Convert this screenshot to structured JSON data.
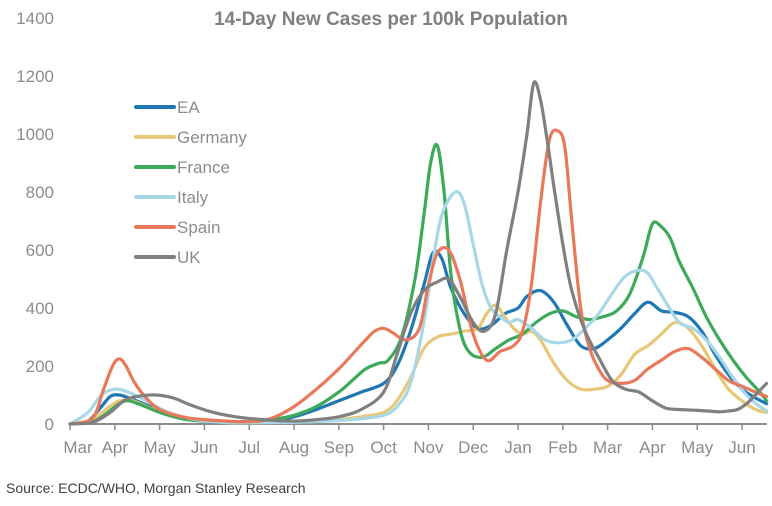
{
  "chart_data": {
    "type": "line",
    "title": "14-Day New Cases per 100k Population",
    "xlabel": "",
    "ylabel": "",
    "ylim": [
      0,
      1400
    ],
    "yticks": [
      0,
      200,
      400,
      600,
      800,
      1000,
      1200,
      1400
    ],
    "ytick_labels": [
      "0",
      "200",
      "400",
      "600",
      "800",
      "1000",
      "1200",
      "1400"
    ],
    "x_unit": "months since start of March 2020",
    "xlim": [
      0,
      15.55
    ],
    "xticks": [
      0,
      1,
      2,
      3,
      4,
      5,
      6,
      7,
      8,
      9,
      10,
      11,
      12,
      13,
      14,
      15
    ],
    "xtick_labels": [
      "Mar",
      "Apr",
      "May",
      "Jun",
      "Jul",
      "Aug",
      "Sep",
      "Oct",
      "Nov",
      "Dec",
      "Jan",
      "Feb",
      "Mar",
      "Apr",
      "May",
      "Jun"
    ],
    "grid": false,
    "legend_position": "top-left",
    "series": [
      {
        "name": "EA",
        "color": "#1f77b4",
        "x": [
          0,
          0.4,
          0.7,
          0.9,
          1.1,
          1.4,
          1.8,
          2.3,
          3,
          4,
          4.5,
          5,
          5.5,
          6,
          6.5,
          7,
          7.3,
          7.6,
          7.9,
          8.1,
          8.3,
          8.5,
          8.8,
          9.1,
          9.4,
          9.7,
          10,
          10.2,
          10.5,
          10.8,
          11.1,
          11.4,
          11.7,
          12,
          12.3,
          12.6,
          12.9,
          13.2,
          13.5,
          13.8,
          14.1,
          14.4,
          14.7,
          15,
          15.3,
          15.55
        ],
        "y": [
          0,
          10,
          60,
          95,
          100,
          85,
          60,
          30,
          12,
          8,
          12,
          25,
          50,
          80,
          110,
          140,
          200,
          320,
          480,
          590,
          570,
          470,
          380,
          330,
          340,
          380,
          400,
          440,
          460,
          420,
          340,
          270,
          260,
          290,
          330,
          380,
          420,
          390,
          385,
          370,
          320,
          240,
          170,
          120,
          90,
          70
        ]
      },
      {
        "name": "Germany",
        "color": "#e8c878",
        "x": [
          0,
          0.5,
          0.8,
          1.1,
          1.4,
          1.8,
          2.3,
          3,
          4,
          5,
          6,
          6.5,
          7,
          7.3,
          7.6,
          7.9,
          8.2,
          8.5,
          8.8,
          9.1,
          9.3,
          9.5,
          9.7,
          9.9,
          10.1,
          10.3,
          10.5,
          10.8,
          11.1,
          11.4,
          11.7,
          12,
          12.3,
          12.6,
          12.9,
          13.2,
          13.5,
          13.8,
          14.1,
          14.4,
          14.7,
          15,
          15.3,
          15.55
        ],
        "y": [
          0,
          15,
          50,
          80,
          80,
          55,
          30,
          12,
          6,
          8,
          15,
          25,
          40,
          80,
          160,
          260,
          300,
          310,
          320,
          330,
          380,
          410,
          370,
          330,
          310,
          320,
          290,
          210,
          150,
          120,
          120,
          130,
          170,
          240,
          270,
          310,
          350,
          330,
          270,
          190,
          120,
          80,
          50,
          40
        ]
      },
      {
        "name": "France",
        "color": "#3daa5a",
        "x": [
          0,
          0.5,
          0.8,
          1.1,
          1.3,
          1.6,
          2,
          2.5,
          3,
          4,
          4.5,
          5,
          5.5,
          6,
          6.3,
          6.6,
          6.9,
          7.1,
          7.4,
          7.7,
          7.9,
          8.05,
          8.2,
          8.35,
          8.5,
          8.7,
          8.9,
          9.2,
          9.5,
          9.8,
          10.1,
          10.4,
          10.7,
          11,
          11.3,
          11.6,
          11.9,
          12.2,
          12.5,
          12.8,
          13.0,
          13.2,
          13.4,
          13.6,
          13.9,
          14.2,
          14.5,
          14.8,
          15.1,
          15.4,
          15.55
        ],
        "y": [
          0,
          8,
          35,
          70,
          80,
          65,
          40,
          18,
          10,
          8,
          15,
          30,
          60,
          110,
          150,
          190,
          210,
          220,
          300,
          500,
          720,
          900,
          960,
          800,
          520,
          330,
          250,
          230,
          260,
          290,
          310,
          350,
          380,
          390,
          370,
          360,
          370,
          390,
          450,
          580,
          690,
          680,
          640,
          560,
          470,
          370,
          290,
          220,
          160,
          110,
          80
        ]
      },
      {
        "name": "Italy",
        "color": "#a8d8e8",
        "x": [
          0,
          0.4,
          0.7,
          1,
          1.3,
          1.7,
          2.2,
          2.8,
          3.5,
          4,
          5,
          6,
          6.5,
          7,
          7.3,
          7.6,
          7.9,
          8.1,
          8.3,
          8.6,
          8.8,
          9.0,
          9.2,
          9.4,
          9.6,
          9.8,
          10,
          10.3,
          10.6,
          10.9,
          11.2,
          11.5,
          11.8,
          12.1,
          12.4,
          12.7,
          12.9,
          13.1,
          13.3,
          13.6,
          13.9,
          14.2,
          14.5,
          14.8,
          15.1,
          15.4,
          15.55
        ],
        "y": [
          0,
          40,
          100,
          120,
          110,
          80,
          40,
          15,
          5,
          4,
          6,
          12,
          18,
          30,
          60,
          140,
          350,
          560,
          720,
          800,
          760,
          620,
          480,
          400,
          370,
          350,
          360,
          330,
          290,
          280,
          290,
          330,
          380,
          450,
          510,
          530,
          520,
          470,
          420,
          350,
          330,
          290,
          230,
          160,
          100,
          60,
          45
        ]
      },
      {
        "name": "Spain",
        "color": "#e8795a",
        "x": [
          0,
          0.5,
          0.75,
          0.95,
          1.1,
          1.25,
          1.45,
          1.7,
          2,
          2.5,
          3,
          4,
          4.5,
          5,
          5.5,
          6,
          6.3,
          6.6,
          6.8,
          7.0,
          7.2,
          7.5,
          7.8,
          8.0,
          8.2,
          8.45,
          8.7,
          9.0,
          9.3,
          9.6,
          9.9,
          10.1,
          10.3,
          10.5,
          10.7,
          10.9,
          11.05,
          11.2,
          11.4,
          11.6,
          11.8,
          12,
          12.3,
          12.6,
          12.9,
          13.2,
          13.5,
          13.8,
          14.1,
          14.4,
          14.7,
          15,
          15.3,
          15.55
        ],
        "y": [
          0,
          20,
          120,
          200,
          225,
          200,
          140,
          90,
          50,
          25,
          15,
          8,
          20,
          60,
          120,
          190,
          240,
          290,
          320,
          330,
          315,
          290,
          330,
          480,
          590,
          600,
          500,
          310,
          220,
          250,
          270,
          320,
          480,
          760,
          980,
          1010,
          950,
          700,
          400,
          260,
          190,
          150,
          140,
          150,
          190,
          220,
          250,
          260,
          230,
          190,
          150,
          130,
          110,
          95
        ]
      },
      {
        "name": "UK",
        "color": "#808080",
        "x": [
          0,
          0.5,
          0.9,
          1.2,
          1.5,
          1.9,
          2.3,
          2.7,
          3.2,
          3.7,
          4.3,
          5,
          5.5,
          6,
          6.5,
          7,
          7.3,
          7.6,
          7.9,
          8.2,
          8.45,
          8.7,
          9,
          9.25,
          9.5,
          9.75,
          10.0,
          10.2,
          10.35,
          10.5,
          10.65,
          10.8,
          11.0,
          11.2,
          11.5,
          11.8,
          12.1,
          12.4,
          12.7,
          13.0,
          13.3,
          13.6,
          13.9,
          14.2,
          14.5,
          14.7,
          14.9,
          15.1,
          15.3,
          15.55
        ],
        "y": [
          0,
          5,
          40,
          80,
          95,
          100,
          90,
          65,
          40,
          25,
          15,
          10,
          15,
          25,
          50,
          110,
          240,
          380,
          460,
          490,
          500,
          440,
          350,
          320,
          380,
          600,
          800,
          1000,
          1175,
          1120,
          980,
          820,
          620,
          460,
          320,
          230,
          150,
          120,
          110,
          80,
          55,
          50,
          48,
          45,
          42,
          45,
          50,
          70,
          100,
          140
        ]
      }
    ]
  },
  "source_text": "Source: ECDC/WHO, Morgan Stanley Research"
}
